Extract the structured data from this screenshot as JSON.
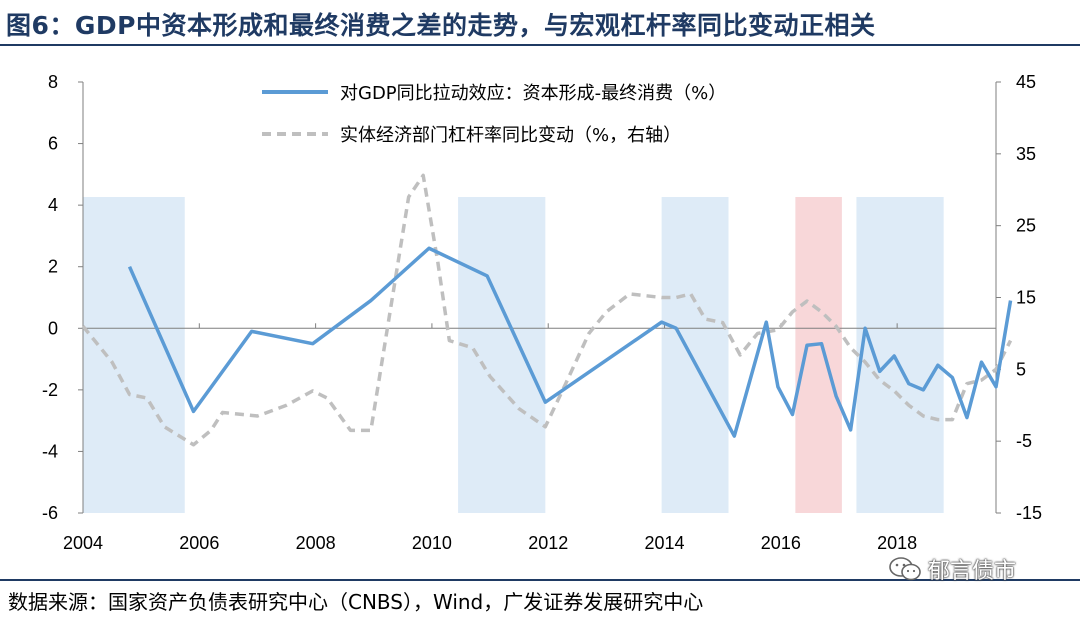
{
  "title": "图6：GDP中资本形成和最终消费之差的走势，与宏观杠杆率同比变动正相关",
  "source": "数据来源：国家资产负债表研究中心（CNBS），Wind，广发证券发展研究中心",
  "watermark": {
    "text": "郁言债市",
    "icon": "wechat-icon"
  },
  "colors": {
    "title": "#1f3a63",
    "series1": "#5b9bd5",
    "series2": "#bfbfbf",
    "shade_blue": "#deebf7",
    "shade_red": "#f8d7d9"
  },
  "chart_data": {
    "type": "line",
    "xlim": [
      2004,
      2019.7
    ],
    "x_ticks": [
      "2004",
      "2006",
      "2008",
      "2010",
      "2012",
      "2014",
      "2016",
      "2018"
    ],
    "y_left": {
      "lim": [
        -6,
        8
      ],
      "ticks": [
        "8",
        "6",
        "4",
        "2",
        "0",
        "-2",
        "-4",
        "-6"
      ]
    },
    "y_right": {
      "lim": [
        -15,
        45
      ],
      "ticks": [
        "45",
        "35",
        "25",
        "15",
        "5",
        "-5",
        "-15"
      ]
    },
    "shaded_periods": [
      {
        "start": 2004.0,
        "end": 2005.75,
        "color": "blue"
      },
      {
        "start": 2010.45,
        "end": 2011.95,
        "color": "blue"
      },
      {
        "start": 2013.95,
        "end": 2015.1,
        "color": "blue"
      },
      {
        "start": 2016.25,
        "end": 2017.05,
        "color": "red"
      },
      {
        "start": 2017.3,
        "end": 2018.8,
        "color": "blue"
      }
    ],
    "series": [
      {
        "name": "对GDP同比拉动效应：资本形成-最终消费（%）",
        "axis": "left",
        "style": "solid",
        "points": [
          [
            2004.8,
            2.0
          ],
          [
            2005.9,
            -2.7
          ],
          [
            2006.9,
            -0.1
          ],
          [
            2007.95,
            -0.5
          ],
          [
            2008.95,
            0.9
          ],
          [
            2009.95,
            2.6
          ],
          [
            2010.95,
            1.7
          ],
          [
            2011.95,
            -2.4
          ],
          [
            2013.95,
            0.2
          ],
          [
            2014.2,
            0.0
          ],
          [
            2015.2,
            -3.5
          ],
          [
            2015.75,
            0.2
          ],
          [
            2015.95,
            -1.9
          ],
          [
            2016.2,
            -2.8
          ],
          [
            2016.45,
            -0.55
          ],
          [
            2016.7,
            -0.5
          ],
          [
            2016.95,
            -2.2
          ],
          [
            2017.2,
            -3.3
          ],
          [
            2017.45,
            0.0
          ],
          [
            2017.7,
            -1.4
          ],
          [
            2017.95,
            -0.9
          ],
          [
            2018.2,
            -1.8
          ],
          [
            2018.45,
            -2.0
          ],
          [
            2018.7,
            -1.2
          ],
          [
            2018.95,
            -1.6
          ],
          [
            2019.2,
            -2.9
          ],
          [
            2019.45,
            -1.1
          ],
          [
            2019.7,
            -1.9
          ],
          [
            2019.95,
            0.9
          ]
        ]
      },
      {
        "name": "实体经济部门杠杆率同比变动（%，右轴）",
        "axis": "right",
        "style": "dashed",
        "points": [
          [
            2004.0,
            11
          ],
          [
            2004.5,
            6
          ],
          [
            2004.8,
            1.5
          ],
          [
            2005.1,
            1
          ],
          [
            2005.4,
            -3
          ],
          [
            2005.9,
            -5.5
          ],
          [
            2006.2,
            -3.5
          ],
          [
            2006.4,
            -1
          ],
          [
            2007.0,
            -1.5
          ],
          [
            2007.5,
            0
          ],
          [
            2007.95,
            2
          ],
          [
            2008.2,
            1
          ],
          [
            2008.6,
            -3.5
          ],
          [
            2008.95,
            -3.5
          ],
          [
            2009.3,
            14
          ],
          [
            2009.6,
            29
          ],
          [
            2009.85,
            32
          ],
          [
            2010.1,
            20
          ],
          [
            2010.3,
            9
          ],
          [
            2010.7,
            8
          ],
          [
            2011.0,
            4
          ],
          [
            2011.5,
            -0.5
          ],
          [
            2011.95,
            -3
          ],
          [
            2012.3,
            3
          ],
          [
            2012.7,
            10
          ],
          [
            2013.0,
            13
          ],
          [
            2013.4,
            15.5
          ],
          [
            2013.95,
            15
          ],
          [
            2014.2,
            15
          ],
          [
            2014.45,
            15.5
          ],
          [
            2014.7,
            12
          ],
          [
            2015.0,
            11.5
          ],
          [
            2015.3,
            7
          ],
          [
            2015.6,
            10
          ],
          [
            2015.95,
            10.5
          ],
          [
            2016.2,
            13
          ],
          [
            2016.45,
            14.5
          ],
          [
            2016.7,
            13
          ],
          [
            2016.95,
            11
          ],
          [
            2017.2,
            8
          ],
          [
            2017.45,
            6
          ],
          [
            2017.7,
            3.5
          ],
          [
            2017.95,
            2
          ],
          [
            2018.2,
            0
          ],
          [
            2018.45,
            -1.5
          ],
          [
            2018.7,
            -2
          ],
          [
            2018.95,
            -2
          ],
          [
            2019.2,
            3
          ],
          [
            2019.45,
            3.5
          ],
          [
            2019.7,
            5
          ],
          [
            2019.95,
            9
          ]
        ]
      }
    ]
  }
}
